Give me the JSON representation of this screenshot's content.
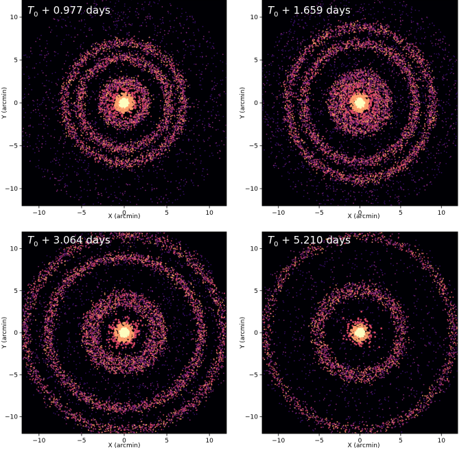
{
  "figure": {
    "panels": [
      {
        "id": "p1",
        "label_prefix": "T",
        "label_sub": "0",
        "label_suffix": " + 0.977 days",
        "xlabel": "X (arcmin)",
        "ylabel": "Y (arcmin)",
        "xlim": [
          -12,
          12
        ],
        "ylim": [
          -12,
          12
        ],
        "xticks": [
          -10,
          -5,
          0,
          5,
          10
        ],
        "yticks": [
          -10,
          -5,
          0,
          5,
          10
        ],
        "rings_arcmin": [
          2.5,
          5.3,
          7.0
        ],
        "ring_weights": [
          1.0,
          1.0,
          0.9
        ],
        "core_weight": 1.0,
        "n_background": 1600
      },
      {
        "id": "p2",
        "label_prefix": "T",
        "label_sub": "0",
        "label_suffix": " + 1.659 days",
        "xlabel": "X (arcmin)",
        "ylabel": "Y (arcmin)",
        "xlim": [
          -12,
          12
        ],
        "ylim": [
          -12,
          12
        ],
        "xticks": [
          -10,
          -5,
          0,
          5,
          10
        ],
        "yticks": [
          -10,
          -5,
          0,
          5,
          10
        ],
        "rings_arcmin": [
          2.3,
          3.4,
          6.9,
          8.9
        ],
        "ring_weights": [
          1.0,
          0.9,
          1.0,
          0.9
        ],
        "core_weight": 1.0,
        "n_background": 2200
      },
      {
        "id": "p3",
        "label_prefix": "T",
        "label_sub": "0",
        "label_suffix": " + 3.064 days",
        "xlabel": "X (arcmin)",
        "ylabel": "Y (arcmin)",
        "xlim": [
          -12,
          12
        ],
        "ylim": [
          -12,
          12
        ],
        "xticks": [
          -10,
          -5,
          0,
          5,
          10
        ],
        "yticks": [
          -10,
          -5,
          0,
          5,
          10
        ],
        "rings_arcmin": [
          3.5,
          4.5,
          9.0,
          11.6
        ],
        "ring_weights": [
          0.8,
          0.8,
          1.0,
          0.7
        ],
        "core_weight": 0.9,
        "n_background": 1700
      },
      {
        "id": "p4",
        "label_prefix": "T",
        "label_sub": "0",
        "label_suffix": " + 5.210 days",
        "xlabel": "X (arcmin)",
        "ylabel": "Y (arcmin)",
        "xlim": [
          -12,
          12
        ],
        "ylim": [
          -12,
          12
        ],
        "xticks": [
          -10,
          -5,
          0,
          5,
          10
        ],
        "yticks": [
          -10,
          -5,
          0,
          5,
          10
        ],
        "rings_arcmin": [
          4.8,
          5.5,
          11.5
        ],
        "ring_weights": [
          0.5,
          0.5,
          0.5
        ],
        "core_weight": 0.6,
        "n_background": 1100
      }
    ],
    "colors": {
      "background": "#000004",
      "axes": "#000000",
      "label_text": "#ffffff",
      "colormap": [
        "#3b0f70",
        "#8c2981",
        "#de4968",
        "#fe9f6d",
        "#fcfdbf"
      ]
    }
  }
}
